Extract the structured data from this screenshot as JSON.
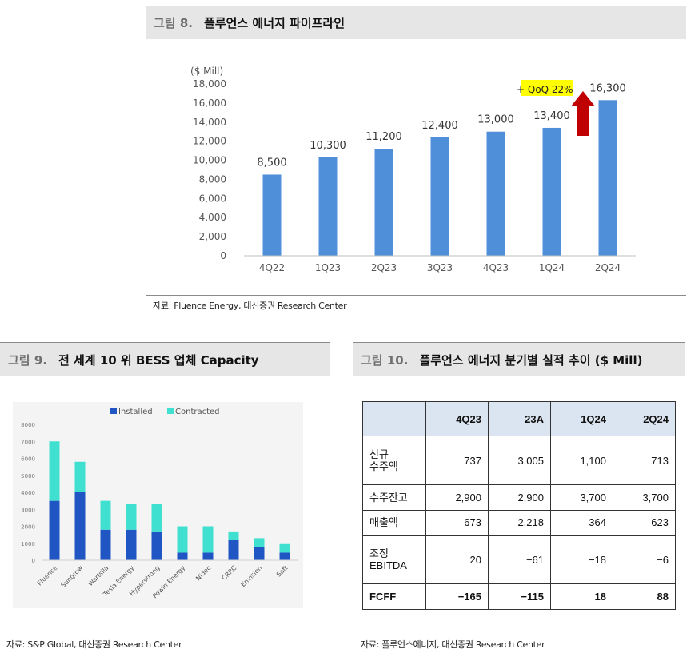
{
  "fig8": {
    "number": "그림 8.",
    "title": "플루언스 에너지 파이프라인",
    "source": "자료: Fluence Energy, 대신증권 Research Center",
    "annotation": "+ QoQ 22%",
    "colors": {
      "bar": "#4f8fd9",
      "arrow": "#c00000",
      "highlight": "#ffff00"
    }
  },
  "fig9": {
    "number": "그림 9.",
    "title": "전 세계 10 위 BESS 업체 Capacity",
    "source": "자료: S&P Global, 대신증권 Research Center",
    "colors": {
      "installed": "#1f56c4",
      "contracted": "#40e0d0"
    }
  },
  "fig10": {
    "number": "그림 10.",
    "title": "플루언스 에너지 분기별 실적 추이 ($ Mill)",
    "source": "자료: 플루언스에너지, 대신증권 Research Center",
    "columns": [
      "4Q23",
      "23A",
      "1Q24",
      "2Q24"
    ],
    "rows": [
      {
        "label": "신규\n수주액",
        "values": [
          "737",
          "3,005",
          "1,100",
          "713"
        ],
        "bold": false
      },
      {
        "label": "수주잔고",
        "values": [
          "2,900",
          "2,900",
          "3,700",
          "3,700"
        ],
        "bold": false
      },
      {
        "label": "매출액",
        "values": [
          "673",
          "2,218",
          "364",
          "623"
        ],
        "bold": false
      },
      {
        "label": "조정\nEBITDA",
        "values": [
          "20",
          "−61",
          "−18",
          "−6"
        ],
        "bold": false
      },
      {
        "label": "FCFF",
        "values": [
          "−165",
          "−115",
          "18",
          "88"
        ],
        "bold": true
      }
    ]
  },
  "chart_data": [
    {
      "type": "bar",
      "title": "플루언스 에너지 파이프라인",
      "ylabel": "($ Mill)",
      "ylim": [
        0,
        18000
      ],
      "yticks": [
        "0",
        "2,000",
        "4,000",
        "6,000",
        "8,000",
        "10,000",
        "12,000",
        "14,000",
        "16,000",
        "18,000"
      ],
      "categories": [
        "4Q22",
        "1Q23",
        "2Q23",
        "3Q23",
        "4Q23",
        "1Q24",
        "2Q24"
      ],
      "values": [
        8500,
        10300,
        11200,
        12400,
        13000,
        13400,
        16300
      ],
      "labels": [
        "8,500",
        "10,300",
        "11,200",
        "12,400",
        "13,000",
        "13,400",
        "16,300"
      ]
    },
    {
      "type": "bar",
      "stacked": true,
      "title": "전 세계 10 위 BESS 업체 Capacity",
      "ylim": [
        0,
        8000
      ],
      "yticks": [
        "0",
        "1000",
        "2000",
        "3000",
        "4000",
        "5000",
        "6000",
        "7000",
        "8000"
      ],
      "categories": [
        "Fluence",
        "Sungrow",
        "Wartsila",
        "Tesla Energy",
        "Hyperstrong",
        "Powin Energy",
        "Nidec",
        "CRRC",
        "Envision",
        "Saft"
      ],
      "series": [
        {
          "name": "Installed",
          "values": [
            3500,
            4000,
            1800,
            1800,
            1700,
            450,
            450,
            1200,
            800,
            450
          ]
        },
        {
          "name": "Contracted",
          "values": [
            3500,
            1800,
            1700,
            1500,
            1600,
            1550,
            1550,
            500,
            500,
            550
          ]
        }
      ]
    }
  ]
}
